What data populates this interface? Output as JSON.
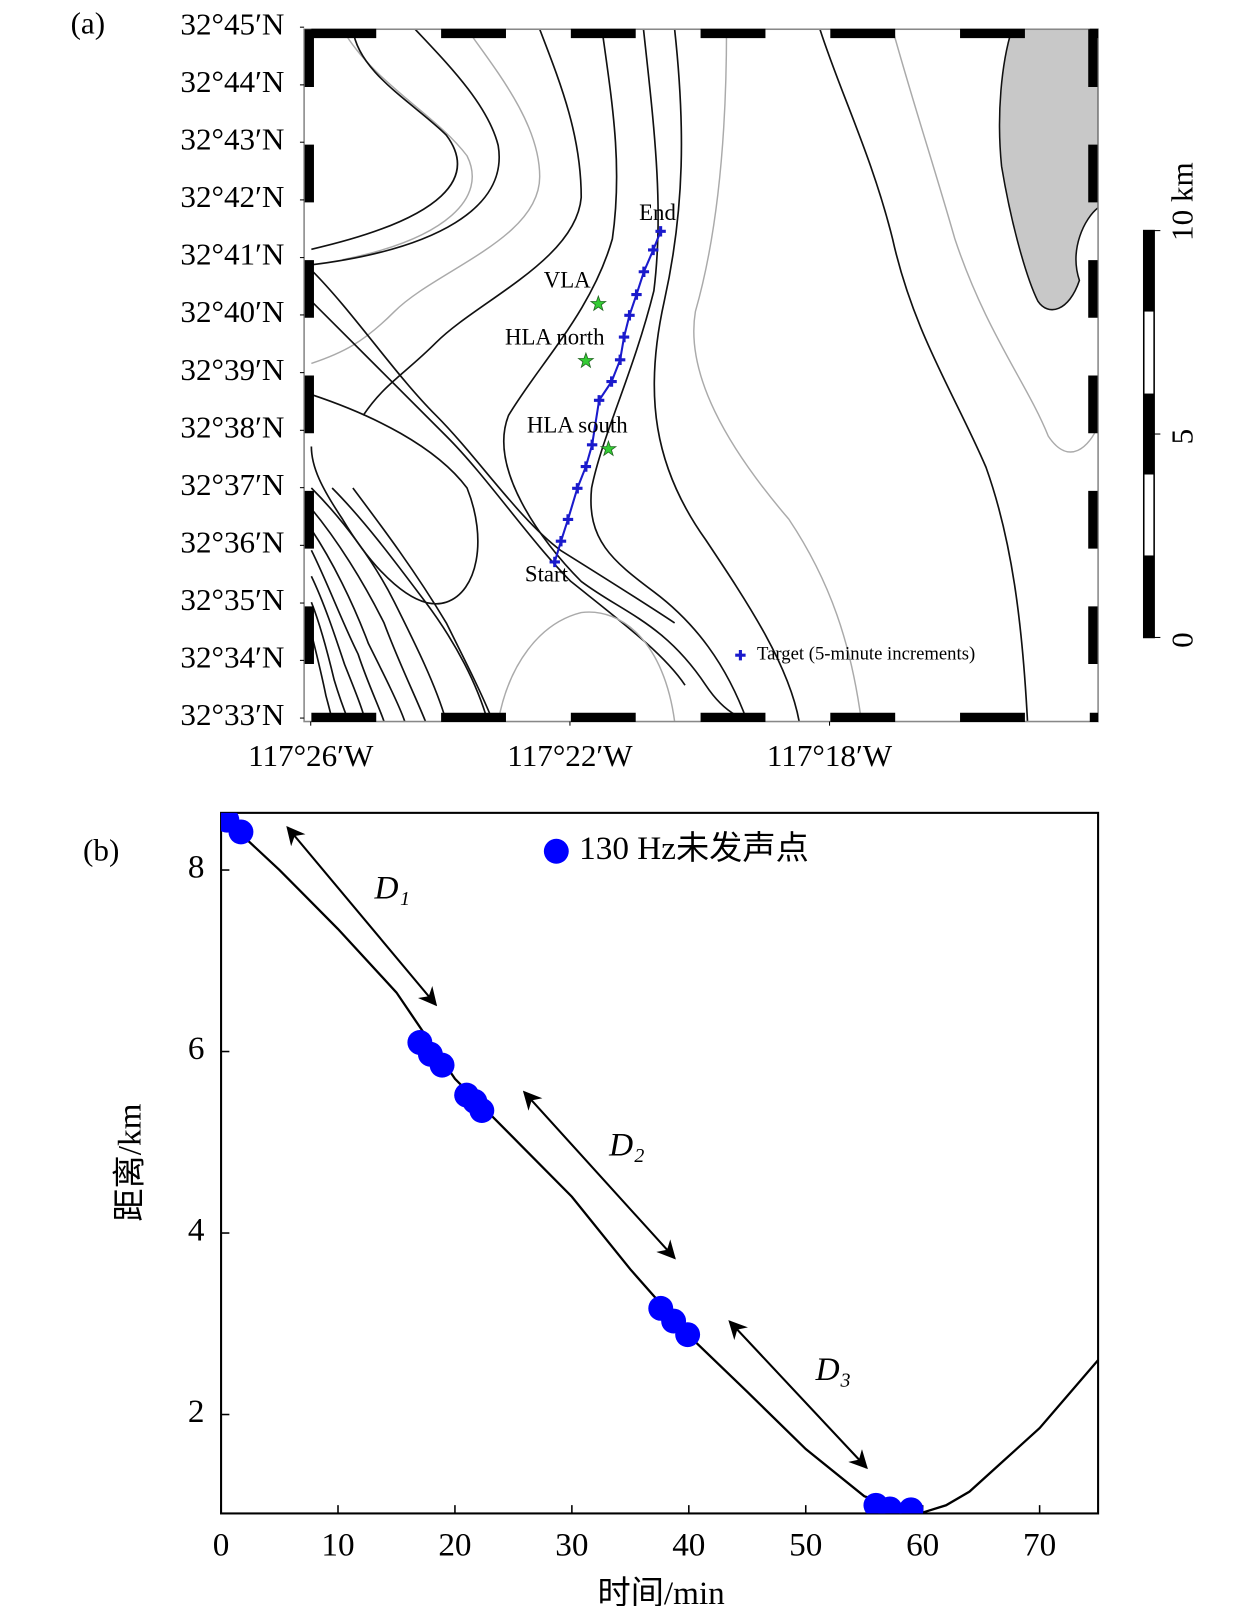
{
  "chart_data": [
    {
      "type": "map",
      "panel_label": "(a)",
      "xlim": [
        -117.435,
        -117.231
      ],
      "ylim": [
        32.549,
        32.75
      ],
      "xticks": [
        {
          "value": -117.4333,
          "label": "117°26′W"
        },
        {
          "value": -117.3667,
          "label": "117°22′W"
        },
        {
          "value": -117.3,
          "label": "117°18′W"
        }
      ],
      "yticks": [
        {
          "value": 32.55,
          "label": "32°33′N"
        },
        {
          "value": 32.5667,
          "label": "32°34′N"
        },
        {
          "value": 32.5833,
          "label": "32°35′N"
        },
        {
          "value": 32.6,
          "label": "32°36′N"
        },
        {
          "value": 32.6167,
          "label": "32°37′N"
        },
        {
          "value": 32.6333,
          "label": "32°38′N"
        },
        {
          "value": 32.65,
          "label": "32°39′N"
        },
        {
          "value": 32.6667,
          "label": "32°40′N"
        },
        {
          "value": 32.6833,
          "label": "32°41′N"
        },
        {
          "value": 32.7,
          "label": "32°42′N"
        },
        {
          "value": 32.7167,
          "label": "32°43′N"
        },
        {
          "value": 32.7333,
          "label": "32°44′N"
        },
        {
          "value": 32.75,
          "label": "32°45′N"
        }
      ],
      "track": {
        "color": "#1a1acc",
        "start_label": "Start",
        "end_label": "End",
        "lon": [
          -117.3706,
          -117.369,
          -117.3672,
          -117.3648,
          -117.3626,
          -117.361,
          -117.3592,
          -117.356,
          -117.3538,
          -117.3528,
          -117.3514,
          -117.3496,
          -117.3477,
          -117.3453,
          -117.3434
        ],
        "lat": [
          32.5952,
          32.6012,
          32.6075,
          32.6165,
          32.6228,
          32.6291,
          32.642,
          32.6474,
          32.6537,
          32.6603,
          32.6666,
          32.6726,
          32.6792,
          32.6855,
          32.6909
        ]
      },
      "stations": [
        {
          "label": "VLA",
          "lon": -117.3594,
          "lat": 32.6699,
          "color": "#33cc33"
        },
        {
          "label": "HLA north",
          "lon": -117.3626,
          "lat": 32.6534,
          "color": "#33cc33"
        },
        {
          "label": "HLA south",
          "lon": -117.3568,
          "lat": 32.6279,
          "color": "#33cc33"
        }
      ],
      "target": {
        "label": "Target (5-minute increments)",
        "lon": -117.3229,
        "lat": 32.5682
      },
      "scale_bar": {
        "ticks": [
          0,
          5,
          {
            "value": 10,
            "label": "10 km"
          }
        ]
      }
    },
    {
      "type": "line",
      "panel_label": "(b)",
      "xlabel": "时间/min",
      "ylabel": "距离/km",
      "xlim": [
        0,
        75
      ],
      "ylim": [
        0.91,
        8.63
      ],
      "xticks": [
        0,
        10,
        20,
        30,
        40,
        50,
        60,
        70
      ],
      "yticks": [
        2,
        4,
        6,
        8
      ],
      "series": [
        {
          "type": "line",
          "color": "#000000",
          "x": [
            0,
            5,
            10,
            15,
            20,
            25,
            30,
            35,
            40,
            45,
            50,
            55,
            58,
            60,
            62,
            64,
            67,
            70,
            75
          ],
          "values": [
            8.6,
            8.0,
            7.35,
            6.65,
            5.7,
            5.05,
            4.4,
            3.6,
            2.87,
            2.25,
            1.62,
            1.1,
            0.97,
            0.92,
            1.0,
            1.15,
            1.5,
            1.85,
            2.6
          ]
        },
        {
          "type": "scatter",
          "name": "130 Hz未发声点",
          "color": "#0000ff",
          "x": [
            0.5,
            1.7,
            17,
            17.9,
            18.9,
            21,
            21.7,
            22.3,
            37.6,
            38.7,
            39.9,
            56,
            57.2,
            59
          ],
          "values": [
            8.55,
            8.42,
            6.1,
            5.97,
            5.85,
            5.52,
            5.45,
            5.35,
            3.17,
            3.03,
            2.88,
            1.0,
            0.96,
            0.95
          ]
        }
      ],
      "annotations": [
        "D₁",
        "D₂",
        "D₃"
      ]
    }
  ]
}
